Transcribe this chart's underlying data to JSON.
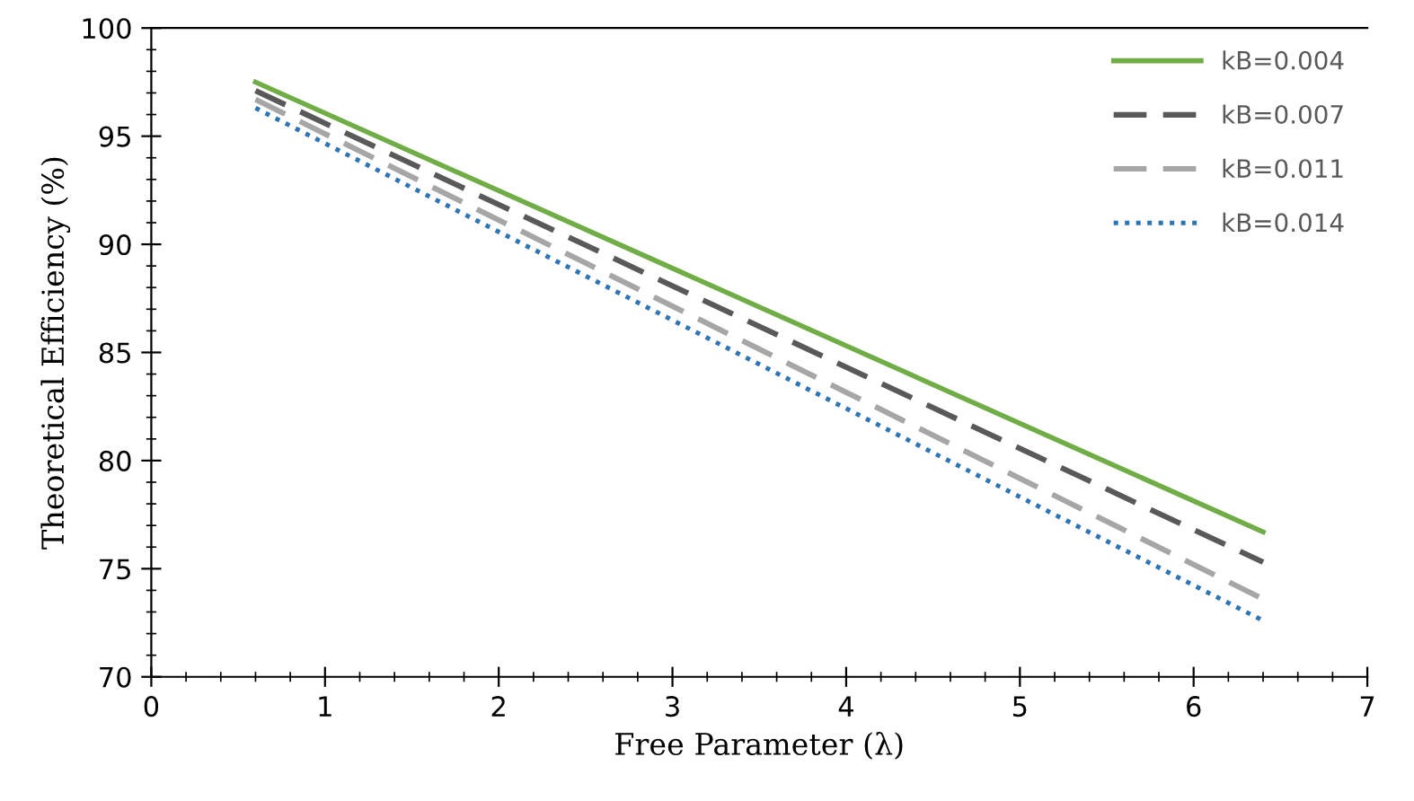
{
  "chart_data": {
    "type": "line",
    "xlabel": "Free Parameter (λ)",
    "ylabel": "Theoretical Efficiency (%)",
    "xlim": [
      0,
      7
    ],
    "xticks": [
      0,
      1,
      2,
      3,
      4,
      5,
      6,
      7
    ],
    "ylim": [
      70,
      100
    ],
    "yticks": [
      70,
      75,
      80,
      85,
      90,
      95,
      100
    ],
    "grid": false,
    "legend": "top right",
    "marker": "none",
    "x": [
      0.6,
      6.4
    ],
    "series": [
      {
        "name": "kB=0.004",
        "color": "#70ad47",
        "line_style": "solid",
        "values": [
          97.5,
          76.7
        ]
      },
      {
        "name": "kB=0.007",
        "color": "#595959",
        "line_style": "dashed",
        "values": [
          97.1,
          75.3
        ]
      },
      {
        "name": "kB=0.011",
        "color": "#a6a6a6",
        "line_style": "dashed",
        "values": [
          96.7,
          73.6
        ]
      },
      {
        "name": "kB=0.014",
        "color": "#2e75b6",
        "line_style": "dotted",
        "values": [
          96.3,
          72.6
        ]
      }
    ]
  }
}
